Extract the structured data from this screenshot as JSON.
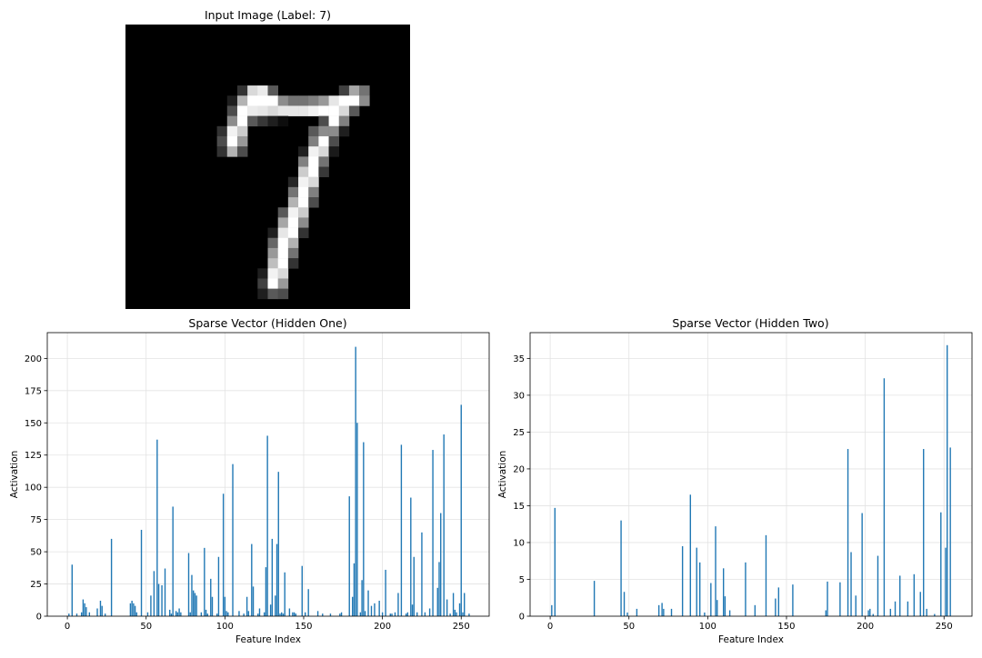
{
  "chart_data": [
    {
      "type": "heatmap",
      "title": "Input Image (Label: 7)",
      "colormap": "gray",
      "rows": 28,
      "cols": 28,
      "axis": "off",
      "pixels": [
        [
          0,
          0,
          0,
          0,
          0,
          0,
          0,
          0,
          0,
          0,
          0,
          0,
          0,
          0,
          0,
          0,
          0,
          0,
          0,
          0,
          0,
          0,
          0,
          0,
          0,
          0,
          0,
          0
        ],
        [
          0,
          0,
          0,
          0,
          0,
          0,
          0,
          0,
          0,
          0,
          0,
          0,
          0,
          0,
          0,
          0,
          0,
          0,
          0,
          0,
          0,
          0,
          0,
          0,
          0,
          0,
          0,
          0
        ],
        [
          0,
          0,
          0,
          0,
          0,
          0,
          0,
          0,
          0,
          0,
          0,
          0,
          0,
          0,
          0,
          0,
          0,
          0,
          0,
          0,
          0,
          0,
          0,
          0,
          0,
          0,
          0,
          0
        ],
        [
          0,
          0,
          0,
          0,
          0,
          0,
          0,
          0,
          0,
          0,
          0,
          0,
          0,
          0,
          0,
          0,
          0,
          0,
          0,
          0,
          0,
          0,
          0,
          0,
          0,
          0,
          0,
          0
        ],
        [
          0,
          0,
          0,
          0,
          0,
          0,
          0,
          0,
          0,
          0,
          0,
          0,
          0,
          0,
          0,
          0,
          0,
          0,
          0,
          0,
          0,
          0,
          0,
          0,
          0,
          0,
          0,
          0
        ],
        [
          0,
          0,
          0,
          0,
          0,
          0,
          0,
          0,
          0,
          0,
          0,
          0,
          0,
          0,
          0,
          0,
          0,
          0,
          0,
          0,
          0,
          0,
          0,
          0,
          0,
          0,
          0,
          0
        ],
        [
          0,
          0,
          0,
          0,
          0,
          0,
          0,
          0,
          0,
          0,
          0,
          0.2,
          0.85,
          0.92,
          0.35,
          0,
          0,
          0,
          0,
          0,
          0,
          0.25,
          0.65,
          0.45,
          0,
          0,
          0,
          0
        ],
        [
          0,
          0,
          0,
          0,
          0,
          0,
          0,
          0,
          0,
          0,
          0.12,
          0.7,
          1,
          1,
          1,
          0.55,
          0.45,
          0.45,
          0.5,
          0.6,
          0.9,
          1,
          1,
          0.55,
          0,
          0,
          0,
          0
        ],
        [
          0,
          0,
          0,
          0,
          0,
          0,
          0,
          0,
          0,
          0,
          0.3,
          1,
          0.92,
          0.9,
          0.85,
          0.9,
          0.9,
          0.9,
          0.95,
          1,
          1,
          0.85,
          0.35,
          0,
          0,
          0,
          0,
          0
        ],
        [
          0,
          0,
          0,
          0,
          0,
          0,
          0,
          0,
          0,
          0,
          0.55,
          1,
          0.35,
          0.22,
          0.12,
          0.05,
          0,
          0,
          0,
          0.3,
          1,
          0.5,
          0,
          0,
          0,
          0,
          0,
          0
        ],
        [
          0,
          0,
          0,
          0,
          0,
          0,
          0,
          0,
          0,
          0.2,
          0.95,
          0.8,
          0,
          0,
          0,
          0,
          0,
          0,
          0.35,
          0.55,
          0.55,
          0.12,
          0,
          0,
          0,
          0,
          0,
          0
        ],
        [
          0,
          0,
          0,
          0,
          0,
          0,
          0,
          0,
          0,
          0.3,
          1,
          0.6,
          0,
          0,
          0,
          0,
          0,
          0,
          0.5,
          1,
          0.3,
          0,
          0,
          0,
          0,
          0,
          0,
          0
        ],
        [
          0,
          0,
          0,
          0,
          0,
          0,
          0,
          0,
          0,
          0.2,
          0.7,
          0.3,
          0,
          0,
          0,
          0,
          0,
          0.12,
          0.95,
          0.85,
          0.1,
          0,
          0,
          0,
          0,
          0,
          0,
          0
        ],
        [
          0,
          0,
          0,
          0,
          0,
          0,
          0,
          0,
          0,
          0,
          0,
          0,
          0,
          0,
          0,
          0,
          0,
          0.5,
          1,
          0.45,
          0,
          0,
          0,
          0,
          0,
          0,
          0,
          0
        ],
        [
          0,
          0,
          0,
          0,
          0,
          0,
          0,
          0,
          0,
          0,
          0,
          0,
          0,
          0,
          0,
          0,
          0,
          0.8,
          1,
          0.22,
          0,
          0,
          0,
          0,
          0,
          0,
          0,
          0
        ],
        [
          0,
          0,
          0,
          0,
          0,
          0,
          0,
          0,
          0,
          0,
          0,
          0,
          0,
          0,
          0,
          0,
          0.15,
          0.95,
          0.85,
          0,
          0,
          0,
          0,
          0,
          0,
          0,
          0,
          0
        ],
        [
          0,
          0,
          0,
          0,
          0,
          0,
          0,
          0,
          0,
          0,
          0,
          0,
          0,
          0,
          0,
          0,
          0.45,
          1,
          0.5,
          0,
          0,
          0,
          0,
          0,
          0,
          0,
          0,
          0
        ],
        [
          0,
          0,
          0,
          0,
          0,
          0,
          0,
          0,
          0,
          0,
          0,
          0,
          0,
          0,
          0,
          0,
          0.7,
          1,
          0.3,
          0,
          0,
          0,
          0,
          0,
          0,
          0,
          0,
          0
        ],
        [
          0,
          0,
          0,
          0,
          0,
          0,
          0,
          0,
          0,
          0,
          0,
          0,
          0,
          0,
          0,
          0.35,
          0.95,
          0.8,
          0,
          0,
          0,
          0,
          0,
          0,
          0,
          0,
          0,
          0
        ],
        [
          0,
          0,
          0,
          0,
          0,
          0,
          0,
          0,
          0,
          0,
          0,
          0,
          0,
          0,
          0,
          0.65,
          1,
          0.55,
          0,
          0,
          0,
          0,
          0,
          0,
          0,
          0,
          0,
          0
        ],
        [
          0,
          0,
          0,
          0,
          0,
          0,
          0,
          0,
          0,
          0,
          0,
          0,
          0,
          0,
          0.12,
          0.9,
          1,
          0.2,
          0,
          0,
          0,
          0,
          0,
          0,
          0,
          0,
          0,
          0
        ],
        [
          0,
          0,
          0,
          0,
          0,
          0,
          0,
          0,
          0,
          0,
          0,
          0,
          0,
          0,
          0.4,
          1,
          0.7,
          0,
          0,
          0,
          0,
          0,
          0,
          0,
          0,
          0,
          0,
          0
        ],
        [
          0,
          0,
          0,
          0,
          0,
          0,
          0,
          0,
          0,
          0,
          0,
          0,
          0,
          0,
          0.6,
          1,
          0.45,
          0,
          0,
          0,
          0,
          0,
          0,
          0,
          0,
          0,
          0,
          0
        ],
        [
          0,
          0,
          0,
          0,
          0,
          0,
          0,
          0,
          0,
          0,
          0,
          0,
          0,
          0,
          0.75,
          1,
          0.2,
          0,
          0,
          0,
          0,
          0,
          0,
          0,
          0,
          0,
          0,
          0
        ],
        [
          0,
          0,
          0,
          0,
          0,
          0,
          0,
          0,
          0,
          0,
          0,
          0,
          0,
          0.12,
          0.95,
          0.85,
          0,
          0,
          0,
          0,
          0,
          0,
          0,
          0,
          0,
          0,
          0,
          0
        ],
        [
          0,
          0,
          0,
          0,
          0,
          0,
          0,
          0,
          0,
          0,
          0,
          0,
          0,
          0.25,
          1,
          0.6,
          0,
          0,
          0,
          0,
          0,
          0,
          0,
          0,
          0,
          0,
          0,
          0
        ],
        [
          0,
          0,
          0,
          0,
          0,
          0,
          0,
          0,
          0,
          0,
          0,
          0,
          0,
          0.12,
          0.35,
          0.3,
          0,
          0,
          0,
          0,
          0,
          0,
          0,
          0,
          0,
          0,
          0,
          0
        ],
        [
          0,
          0,
          0,
          0,
          0,
          0,
          0,
          0,
          0,
          0,
          0,
          0,
          0,
          0,
          0,
          0,
          0,
          0,
          0,
          0,
          0,
          0,
          0,
          0,
          0,
          0,
          0,
          0
        ]
      ]
    },
    {
      "type": "bar",
      "title": "Sparse Vector (Hidden One)",
      "xlabel": "Feature Index",
      "ylabel": "Activation",
      "xlim": [
        -12.75,
        267.75
      ],
      "ylim": [
        0,
        220
      ],
      "xticks": [
        0,
        50,
        100,
        150,
        200,
        250
      ],
      "yticks": [
        0,
        25,
        50,
        75,
        100,
        125,
        150,
        175,
        200
      ],
      "grid": true,
      "color": "#1f77b4",
      "x": [
        1,
        3,
        6,
        9,
        10,
        11,
        12,
        14,
        19,
        21,
        22,
        24,
        28,
        40,
        41,
        42,
        43,
        44,
        47,
        51,
        53,
        55,
        57,
        58,
        60,
        62,
        65,
        66,
        67,
        69,
        70,
        71,
        72,
        77,
        78,
        79,
        80,
        81,
        82,
        85,
        87,
        88,
        89,
        91,
        92,
        95,
        96,
        99,
        100,
        101,
        102,
        105,
        109,
        112,
        114,
        115,
        117,
        118,
        121,
        122,
        125,
        126,
        127,
        129,
        130,
        132,
        133,
        134,
        135,
        136,
        137,
        138,
        141,
        143,
        144,
        145,
        149,
        151,
        153,
        159,
        162,
        167,
        173,
        174,
        179,
        181,
        182,
        183,
        184,
        186,
        187,
        188,
        189,
        191,
        193,
        195,
        198,
        200,
        202,
        205,
        206,
        208,
        210,
        212,
        215,
        216,
        218,
        219,
        220,
        222,
        225,
        227,
        230,
        232,
        235,
        236,
        237,
        239,
        241,
        243,
        245,
        246,
        247,
        249,
        250,
        251,
        252,
        255
      ],
      "values": [
        2,
        40,
        2,
        3,
        13,
        10,
        7,
        3,
        6,
        12,
        8,
        2,
        60,
        10,
        12,
        10,
        8,
        3,
        67,
        3,
        16,
        35,
        137,
        25,
        24,
        37,
        5,
        2,
        85,
        4,
        3,
        6,
        3,
        49,
        3,
        32,
        20,
        18,
        16,
        3,
        53,
        5,
        2,
        29,
        15,
        2,
        46,
        95,
        15,
        4,
        3,
        118,
        4,
        2,
        15,
        4,
        56,
        23,
        2,
        6,
        3,
        38,
        140,
        9,
        60,
        16,
        56,
        112,
        2,
        3,
        2,
        34,
        6,
        3,
        3,
        2,
        39,
        3,
        21,
        4,
        2,
        2,
        2,
        3,
        93,
        15,
        41,
        209,
        150,
        3,
        28,
        135,
        4,
        20,
        8,
        10,
        12,
        3,
        36,
        2,
        2,
        3,
        18,
        133,
        2,
        3,
        92,
        9,
        46,
        3,
        65,
        3,
        6,
        129,
        22,
        42,
        80,
        141,
        13,
        2,
        18,
        5,
        3,
        10,
        164,
        3,
        18,
        2
      ]
    },
    {
      "type": "bar",
      "title": "Sparse Vector (Hidden Two)",
      "xlabel": "Feature Index",
      "ylabel": "Activation",
      "xlim": [
        -12.75,
        267.75
      ],
      "ylim": [
        0,
        38.5
      ],
      "xticks": [
        0,
        50,
        100,
        150,
        200,
        250
      ],
      "yticks": [
        0,
        5,
        10,
        15,
        20,
        25,
        30,
        35
      ],
      "grid": true,
      "color": "#1f77b4",
      "x": [
        1,
        3,
        28,
        45,
        47,
        49,
        55,
        69,
        71,
        72,
        77,
        84,
        89,
        93,
        95,
        98,
        102,
        105,
        106,
        110,
        111,
        114,
        124,
        130,
        137,
        143,
        145,
        154,
        175,
        176,
        184,
        189,
        191,
        194,
        198,
        202,
        203,
        205,
        208,
        212,
        216,
        219,
        222,
        227,
        231,
        235,
        237,
        239,
        244,
        248,
        251,
        252,
        254
      ],
      "values": [
        1.5,
        14.7,
        4.8,
        13,
        3.3,
        0.5,
        1,
        1.5,
        1.8,
        1,
        1,
        9.5,
        16.5,
        9.3,
        7.3,
        0.5,
        4.5,
        12.2,
        2.2,
        6.5,
        2.7,
        0.8,
        7.3,
        1.5,
        11,
        2.4,
        3.9,
        4.3,
        0.8,
        4.7,
        4.6,
        22.7,
        8.7,
        2.8,
        14,
        0.8,
        1,
        0.3,
        8.2,
        32.3,
        1,
        2,
        5.5,
        2,
        5.7,
        3.3,
        22.7,
        1,
        0.3,
        14.1,
        9.3,
        36.8,
        22.9
      ]
    }
  ]
}
